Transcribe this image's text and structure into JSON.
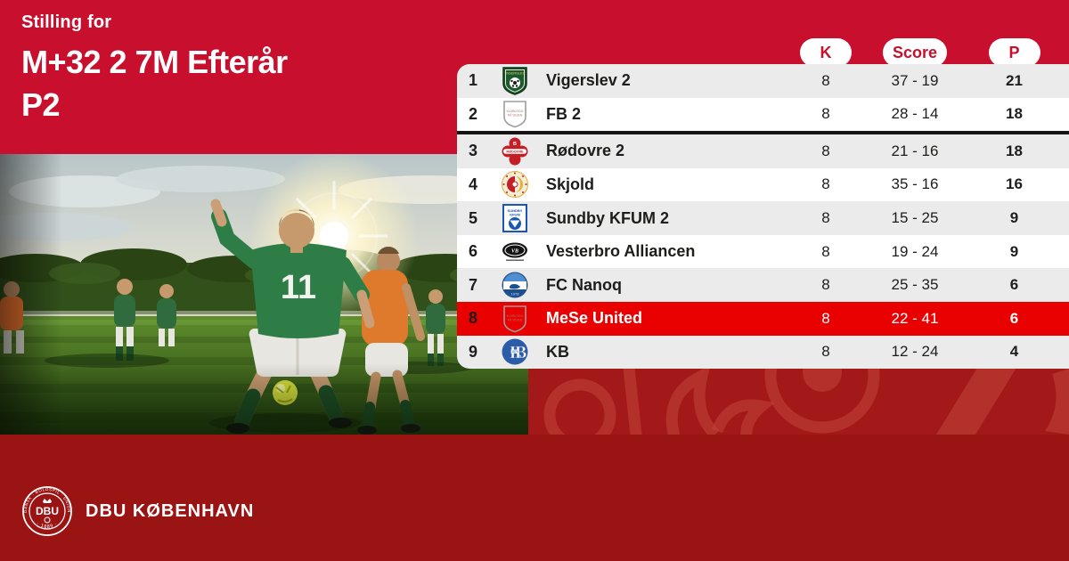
{
  "header": {
    "kicker": "Stilling for",
    "title_line1": "M+32 2 7M Efterår",
    "title_line2": "P2"
  },
  "table": {
    "columns": [
      {
        "key": "k",
        "label": "K"
      },
      {
        "key": "score",
        "label": "Score"
      },
      {
        "key": "p",
        "label": "P"
      }
    ],
    "divider_after_row": 2,
    "rows": [
      {
        "pos": "1",
        "team": "Vigerslev 2",
        "logo": "vigerslev",
        "k": "8",
        "score": "37 - 19",
        "p": "21",
        "highlighted": false
      },
      {
        "pos": "2",
        "team": "FB 2",
        "logo": "placeholder",
        "k": "8",
        "score": "28 - 14",
        "p": "18",
        "highlighted": false
      },
      {
        "pos": "3",
        "team": "Rødovre 2",
        "logo": "rodovre",
        "k": "8",
        "score": "21 - 16",
        "p": "18",
        "highlighted": false
      },
      {
        "pos": "4",
        "team": "Skjold",
        "logo": "skjold",
        "k": "8",
        "score": "35 - 16",
        "p": "16",
        "highlighted": false
      },
      {
        "pos": "5",
        "team": "Sundby KFUM 2",
        "logo": "sundby",
        "k": "8",
        "score": "15 - 25",
        "p": "9",
        "highlighted": false
      },
      {
        "pos": "6",
        "team": "Vesterbro Alliancen",
        "logo": "vesterbro",
        "k": "8",
        "score": "19 - 24",
        "p": "9",
        "highlighted": false
      },
      {
        "pos": "7",
        "team": "FC Nanoq",
        "logo": "nanoq",
        "k": "8",
        "score": "25 - 35",
        "p": "6",
        "highlighted": false
      },
      {
        "pos": "8",
        "team": "MeSe United",
        "logo": "placeholder",
        "k": "8",
        "score": "22 - 41",
        "p": "6",
        "highlighted": true
      },
      {
        "pos": "9",
        "team": "KB",
        "logo": "kb",
        "k": "8",
        "score": "12 - 24",
        "p": "4",
        "highlighted": false
      }
    ]
  },
  "photo": {
    "player_number": "11"
  },
  "logo_texts": {
    "placeholder_line1": "KLUBLOGO",
    "placeholder_line2": "PÅ VEJEN",
    "rodovre_band": "RØDOVRE"
  },
  "footer": {
    "org": "DBU KØBENHAVN",
    "emblem_ring_text": "DANSK · BOLDSPIL · UNION",
    "emblem_center": "DBU",
    "emblem_year": "· 1889 ·"
  },
  "colors": {
    "brand-red": "#C8102E",
    "highlight-red": "#E90000",
    "band-red": "#A31919",
    "deep-red": "#9B1414",
    "row-gray": "#EBEBEB",
    "ink": "#1D1D1B"
  }
}
